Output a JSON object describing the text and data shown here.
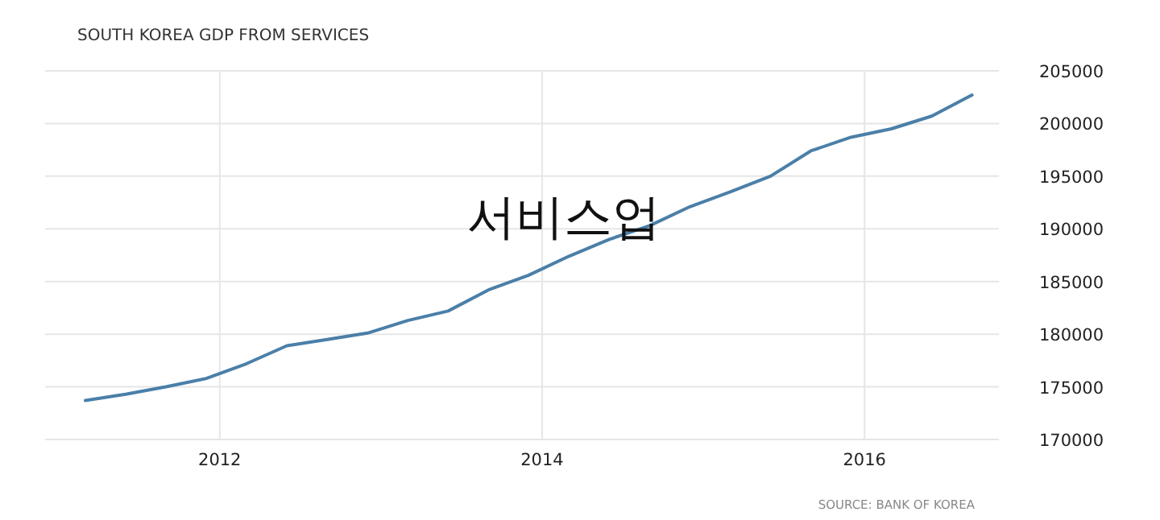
{
  "chart_data": {
    "type": "line",
    "title": "SOUTH KOREA GDP FROM SERVICES",
    "annotations": [
      "서비스업",
      "SOURCE: BANK OF KOREA"
    ],
    "x": [
      "2011-03",
      "2011-06",
      "2011-09",
      "2011-12",
      "2012-03",
      "2012-06",
      "2012-09",
      "2012-12",
      "2013-03",
      "2013-06",
      "2013-09",
      "2013-12",
      "2014-03",
      "2014-06",
      "2014-09",
      "2014-12",
      "2015-03",
      "2015-06",
      "2015-09",
      "2015-12",
      "2016-03",
      "2016-06",
      "2016-09"
    ],
    "series": [
      {
        "color": "#4a7fa8",
        "values": [
          173700,
          174300,
          175000,
          175800,
          177200,
          178900,
          179500,
          180100,
          181300,
          182200,
          184200,
          185600,
          187400,
          189000,
          190300,
          192100,
          193500,
          195000,
          197400,
          198700,
          199500,
          200700,
          202700
        ]
      }
    ],
    "xlim": [
      "2010-12",
      "2016-11"
    ],
    "xticks": [
      "2012",
      "2014",
      "2016"
    ],
    "ylim": [
      170000,
      205000
    ],
    "yticks": [
      170000,
      175000,
      180000,
      185000,
      190000,
      195000,
      200000,
      205000
    ],
    "grid": true,
    "marker": "none",
    "line_style": "solid"
  }
}
